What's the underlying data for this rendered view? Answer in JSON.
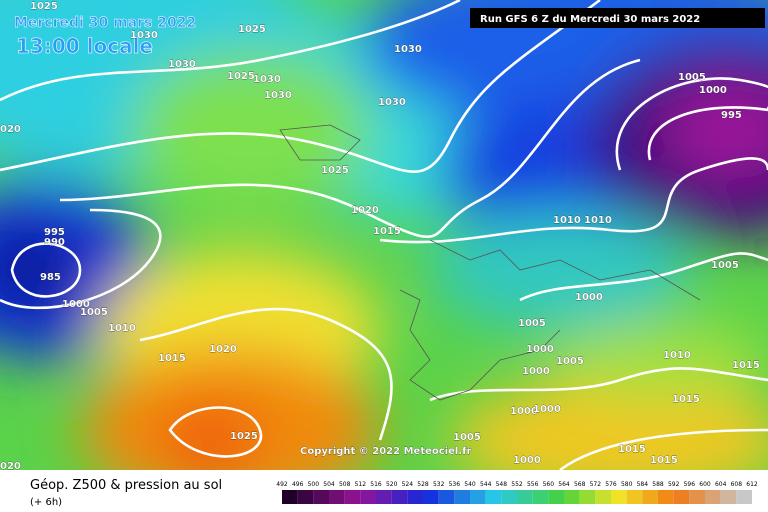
{
  "header": {
    "date": "Mercredi 30 mars 2022",
    "time": "13:00 locale",
    "run": "Run GFS 6 Z du Mercredi 30 mars 2022"
  },
  "isobar_labels": [
    "1025",
    "1030",
    "1025",
    "1030",
    "1025",
    "1030",
    "1030",
    "1030",
    "1030",
    "020",
    "1025",
    "1020",
    "1015",
    "1010",
    "1010",
    "1005",
    "1000",
    "995",
    "995",
    "990",
    "985",
    "1000",
    "1005",
    "1010",
    "1005",
    "1000",
    "1005",
    "1015",
    "1020",
    "1000",
    "1005",
    "1000",
    "1010",
    "1015",
    "1015",
    "1000",
    "1000",
    "1025",
    "1005",
    "1015",
    "1000",
    "1015",
    "020"
  ],
  "copyright": "Copyright © 2022 Meteociel.fr",
  "footer": {
    "title": "Géop. Z500 & pression au sol",
    "lead": "(+ 6h)"
  },
  "scale": [
    492,
    496,
    500,
    504,
    508,
    512,
    516,
    520,
    524,
    528,
    532,
    536,
    540,
    544,
    548,
    552,
    556,
    560,
    564,
    568,
    572,
    576,
    580,
    584,
    588,
    592,
    596,
    600,
    604,
    608,
    612
  ]
}
